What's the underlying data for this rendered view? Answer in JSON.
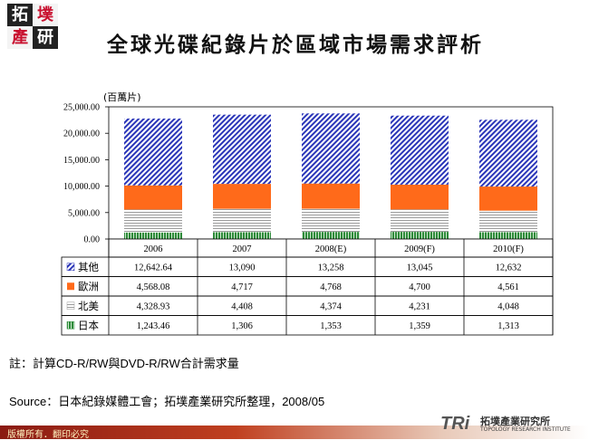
{
  "slide": {
    "logo_chars": [
      "拓",
      "墣",
      "產",
      "研"
    ],
    "title": "全球光碟紀錄片於區域市場需求評析",
    "unit": "(百萬片)",
    "note": "註：計算CD-R/RW與DVD-R/RW合計需求量",
    "source": "Source：日本紀錄媒體工會；拓墣產業研究所整理，2008/05",
    "footer": "版權所有．翻印必究",
    "brand_tri": "TRi",
    "brand_cn": "拓墣產業研究所",
    "brand_en": "TOPOLOGY RESEARCH INSTITUTE"
  },
  "chart_data": {
    "type": "bar",
    "stacked": true,
    "categories": [
      "2006",
      "2007",
      "2008(E)",
      "2009(F)",
      "2010(F)"
    ],
    "ylim": [
      0,
      25000
    ],
    "yticks": [
      "0.00",
      "5,000.00",
      "10,000.00",
      "15,000.00",
      "20,000.00",
      "25,000.00"
    ],
    "ylabel": "(百萬片)",
    "legend_position": "table-left",
    "series": [
      {
        "name": "日本",
        "color": "#2e8b3a",
        "pattern": "vertical-stripes",
        "values": [
          1243.46,
          1306,
          1353,
          1359,
          1313
        ],
        "labels": [
          "1,243.46",
          "1,306",
          "1,353",
          "1,359",
          "1,313"
        ]
      },
      {
        "name": "北美",
        "color": "#9a9a9a",
        "pattern": "horizontal-lines",
        "values": [
          4328.93,
          4408,
          4374,
          4231,
          4048
        ],
        "labels": [
          "4,328.93",
          "4,408",
          "4,374",
          "4,231",
          "4,048"
        ]
      },
      {
        "name": "歐洲",
        "color": "#ff6a1a",
        "pattern": "solid",
        "values": [
          4568.08,
          4717,
          4768,
          4700,
          4561
        ],
        "labels": [
          "4,568.08",
          "4,717",
          "4,768",
          "4,700",
          "4,561"
        ]
      },
      {
        "name": "其他",
        "color": "#2a35b8",
        "pattern": "diagonal-stripes",
        "values": [
          12642.64,
          13090,
          13258,
          13045,
          12632
        ],
        "labels": [
          "12,642.64",
          "13,090",
          "13,258",
          "13,045",
          "12,632"
        ]
      }
    ]
  }
}
